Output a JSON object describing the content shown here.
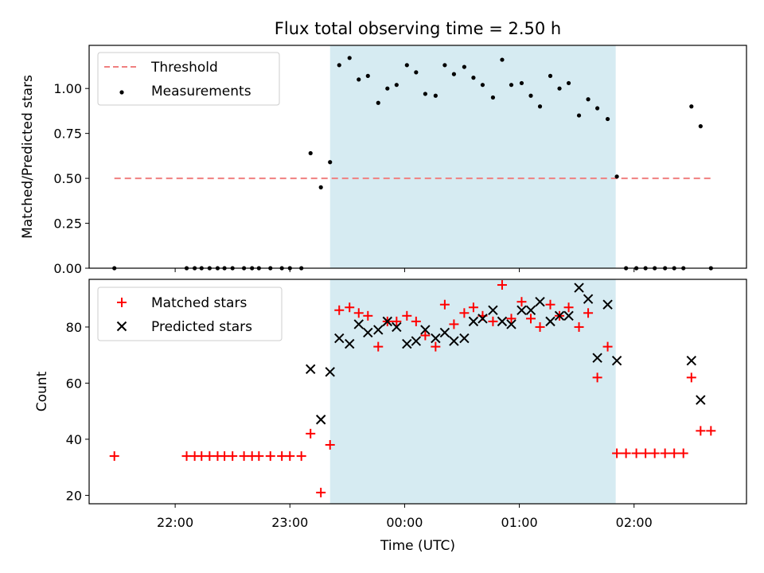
{
  "title": "Flux total observing time = 2.50 h",
  "colors": {
    "threshold": "#f08080",
    "measurements": "#000000",
    "matched": "#ff0000",
    "predicted": "#000000",
    "shade": "#add8e6"
  },
  "chart_data": [
    {
      "type": "scatter",
      "panel": "top",
      "ylabel": "Matched/Predicted stars",
      "ylim": [
        0,
        1.24
      ],
      "yticks": [
        0.0,
        0.25,
        0.5,
        0.75,
        1.0
      ],
      "ytick_labels": [
        "0.00",
        "0.25",
        "0.50",
        "0.75",
        "1.00"
      ],
      "x_hours_utc_note": "",
      "xlim": [
        21.25,
        26.98
      ],
      "shaded_interval": [
        23.35,
        25.84
      ],
      "legend": {
        "placement": "top-left",
        "entries": [
          {
            "key": "threshold",
            "label": "Threshold",
            "marker": "dashed-line"
          },
          {
            "key": "measurements",
            "label": "Measurements",
            "marker": "dot"
          }
        ]
      },
      "threshold": {
        "value": 0.5,
        "x_range": [
          21.47,
          26.67
        ]
      },
      "series": [
        {
          "name": "Measurements",
          "x": [
            21.47,
            22.1,
            22.17,
            22.23,
            22.3,
            22.37,
            22.43,
            22.5,
            22.6,
            22.67,
            22.73,
            22.83,
            22.93,
            23.0,
            23.1,
            23.18,
            23.27,
            23.35,
            23.43,
            23.52,
            23.6,
            23.68,
            23.77,
            23.85,
            23.93,
            24.02,
            24.1,
            24.18,
            24.27,
            24.35,
            24.43,
            24.52,
            24.6,
            24.68,
            24.77,
            24.85,
            24.93,
            25.02,
            25.1,
            25.18,
            25.27,
            25.35,
            25.43,
            25.52,
            25.6,
            25.68,
            25.77,
            25.85,
            25.93,
            26.02,
            26.1,
            26.18,
            26.27,
            26.35,
            26.43,
            26.5,
            26.58,
            26.67
          ],
          "y": [
            0.0,
            0.0,
            0.0,
            0.0,
            0.0,
            0.0,
            0.0,
            0.0,
            0.0,
            0.0,
            0.0,
            0.0,
            0.0,
            0.0,
            0.0,
            0.64,
            0.45,
            0.59,
            1.13,
            1.17,
            1.05,
            1.07,
            0.92,
            1.0,
            1.02,
            1.13,
            1.09,
            0.97,
            0.96,
            1.13,
            1.08,
            1.12,
            1.06,
            1.02,
            0.95,
            1.16,
            1.02,
            1.03,
            0.96,
            0.9,
            1.07,
            1.0,
            1.03,
            0.85,
            0.94,
            0.89,
            0.83,
            0.51,
            0.0,
            0.0,
            0.0,
            0.0,
            0.0,
            0.0,
            0.0,
            0.9,
            0.79,
            0.0
          ]
        }
      ]
    },
    {
      "type": "scatter",
      "panel": "bottom",
      "xlabel": "Time (UTC)",
      "ylabel": "Count",
      "ylim": [
        17,
        97
      ],
      "yticks": [
        20,
        40,
        60,
        80
      ],
      "xlim": [
        21.25,
        26.98
      ],
      "xticks": [
        22,
        23,
        24,
        25,
        26
      ],
      "xtick_labels": [
        "22:00",
        "23:00",
        "00:00",
        "01:00",
        "02:00"
      ],
      "shaded_interval": [
        23.35,
        25.84
      ],
      "legend": {
        "placement": "top-left",
        "entries": [
          {
            "key": "matched",
            "label": "Matched stars",
            "marker": "plus"
          },
          {
            "key": "predicted",
            "label": "Predicted stars",
            "marker": "x"
          }
        ]
      },
      "series": [
        {
          "name": "Matched stars",
          "x": [
            21.47,
            22.1,
            22.17,
            22.23,
            22.3,
            22.37,
            22.43,
            22.5,
            22.6,
            22.67,
            22.73,
            22.83,
            22.93,
            23.0,
            23.1,
            23.18,
            23.27,
            23.35,
            23.43,
            23.52,
            23.6,
            23.68,
            23.77,
            23.85,
            23.93,
            24.02,
            24.1,
            24.18,
            24.27,
            24.35,
            24.43,
            24.52,
            24.6,
            24.68,
            24.77,
            24.85,
            24.93,
            25.02,
            25.1,
            25.18,
            25.27,
            25.35,
            25.43,
            25.52,
            25.6,
            25.68,
            25.77,
            25.85,
            25.93,
            26.02,
            26.1,
            26.18,
            26.27,
            26.35,
            26.43,
            26.5,
            26.58,
            26.67
          ],
          "y": [
            34,
            34,
            34,
            34,
            34,
            34,
            34,
            34,
            34,
            34,
            34,
            34,
            34,
            34,
            34,
            42,
            21,
            38,
            86,
            87,
            85,
            84,
            73,
            82,
            82,
            84,
            82,
            77,
            73,
            88,
            81,
            85,
            87,
            84,
            82,
            95,
            83,
            89,
            83,
            80,
            88,
            84,
            87,
            80,
            85,
            62,
            73,
            35,
            35,
            35,
            35,
            35,
            35,
            35,
            35,
            62,
            43,
            43
          ]
        },
        {
          "name": "Predicted stars",
          "x": [
            23.18,
            23.27,
            23.35,
            23.43,
            23.52,
            23.6,
            23.68,
            23.77,
            23.85,
            23.93,
            24.02,
            24.1,
            24.18,
            24.27,
            24.35,
            24.43,
            24.52,
            24.6,
            24.68,
            24.77,
            24.85,
            24.93,
            25.02,
            25.1,
            25.18,
            25.27,
            25.35,
            25.43,
            25.52,
            25.6,
            25.68,
            25.77,
            25.85,
            26.5,
            26.58
          ],
          "y": [
            65,
            47,
            64,
            76,
            74,
            81,
            78,
            79,
            82,
            80,
            74,
            75,
            79,
            76,
            78,
            75,
            76,
            82,
            83,
            86,
            82,
            81,
            86,
            86,
            89,
            82,
            84,
            84,
            94,
            90,
            69,
            88,
            68,
            68,
            54
          ]
        }
      ]
    }
  ]
}
